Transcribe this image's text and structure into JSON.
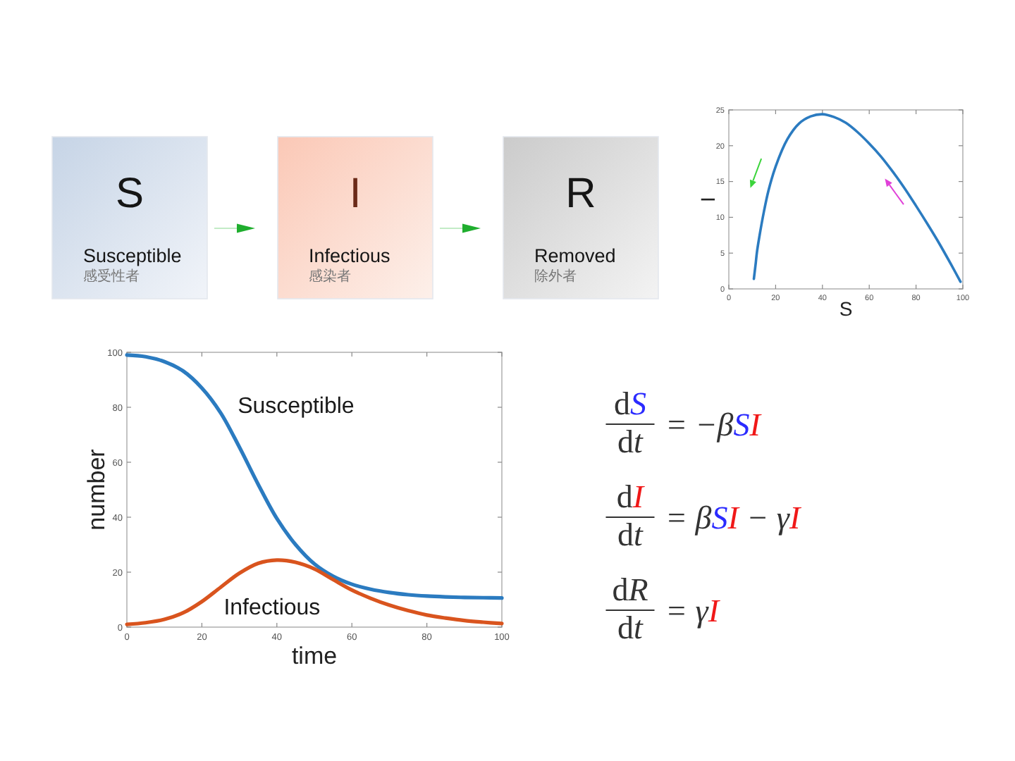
{
  "chart_data": [
    {
      "type": "other",
      "annotations": [
        "S",
        "Susceptible",
        "感受性者",
        "I",
        "Infectious",
        "感染者",
        "R",
        "Removed",
        "除外者"
      ]
    },
    {
      "type": "line",
      "xlabel": "S",
      "ylabel": "I",
      "x": [
        99,
        95,
        90,
        85,
        80,
        75,
        70,
        65,
        60,
        55,
        50,
        45,
        40,
        35,
        30,
        25,
        20,
        17,
        15,
        13,
        12,
        11.5,
        10.7
      ],
      "series": [
        {
          "color": "#2b7bc0",
          "values": [
            1.0,
            3.4,
            6.3,
            9.0,
            11.6,
            14.1,
            16.4,
            18.5,
            20.3,
            21.9,
            23.2,
            24.0,
            24.4,
            24.1,
            23.1,
            20.9,
            17.1,
            13.8,
            10.8,
            7.2,
            5.1,
            3.6,
            1.4
          ]
        }
      ],
      "xlim": [
        0,
        100
      ],
      "ylim": [
        0,
        25
      ],
      "xticks": [
        0,
        20,
        40,
        60,
        80,
        100
      ],
      "yticks": [
        0,
        5,
        10,
        15,
        20,
        25
      ]
    },
    {
      "type": "line",
      "xlabel": "time",
      "ylabel": "number",
      "x": [
        0,
        5,
        10,
        15,
        20,
        25,
        30,
        35,
        40,
        45,
        50,
        55,
        60,
        65,
        70,
        75,
        80,
        85,
        90,
        95,
        100
      ],
      "series": [
        {
          "name": "Susceptible",
          "color": "#2b7bc0",
          "values": [
            99,
            98.4,
            96.6,
            93.2,
            87,
            78,
            65.5,
            52,
            39.5,
            30,
            23,
            18.5,
            15.6,
            13.8,
            12.6,
            11.8,
            11.3,
            11.0,
            10.8,
            10.7,
            10.6
          ]
        },
        {
          "name": "Infectious",
          "color": "#d9541e",
          "values": [
            1,
            1.6,
            2.8,
            5.2,
            9.3,
            14.5,
            19.6,
            23.2,
            24.4,
            23.6,
            21.2,
            17.3,
            13.5,
            10.5,
            8.0,
            6.0,
            4.4,
            3.3,
            2.4,
            1.8,
            1.3
          ]
        }
      ],
      "xlim": [
        0,
        100
      ],
      "ylim": [
        0,
        100
      ],
      "xticks": [
        0,
        20,
        40,
        60,
        80,
        100
      ],
      "yticks": [
        0,
        20,
        40,
        60,
        80,
        100
      ]
    },
    {
      "type": "other",
      "annotations": [
        "dS",
        "dt",
        "= −βSI",
        "dI",
        "dt",
        "= βSI − γI",
        "dR",
        "dt",
        "= γI"
      ]
    }
  ]
}
